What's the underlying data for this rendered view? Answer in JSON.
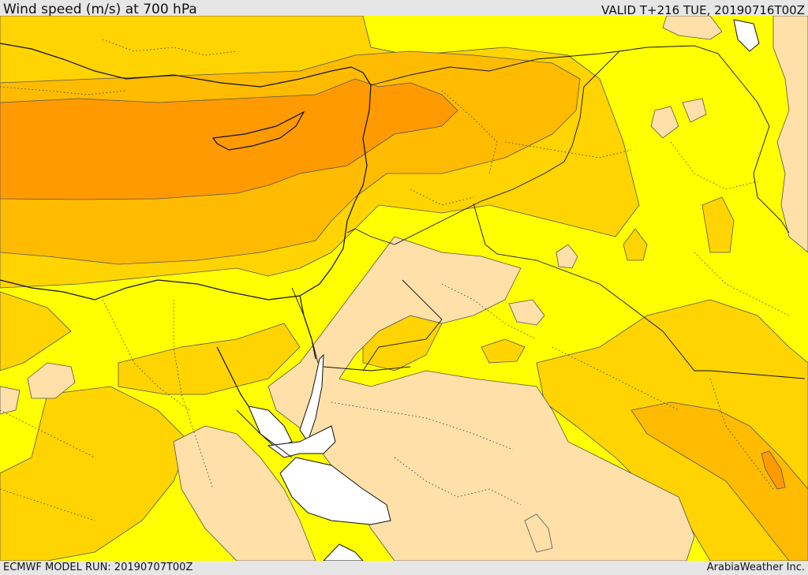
{
  "header": {
    "title": "Wind speed (m/s) at 700 hPa",
    "valid": "VALID T+216 TUE, 20190716T00Z"
  },
  "footer": {
    "model_run": "ECMWF MODEL RUN: 20190707T00Z",
    "provider": "ArabiaWeather Inc."
  },
  "map": {
    "variable": "wind speed",
    "level": "700 hPa",
    "units": "m/s",
    "palette": {
      "lowest": "#ffe0a8",
      "low": "#ffff00",
      "moderate": "#ffd400",
      "high": "#ffbb00",
      "higher": "#ff9a00",
      "water_no_data": "#ffffff",
      "contour": "#555555",
      "coastline": "#111111",
      "border": "#111111"
    }
  }
}
